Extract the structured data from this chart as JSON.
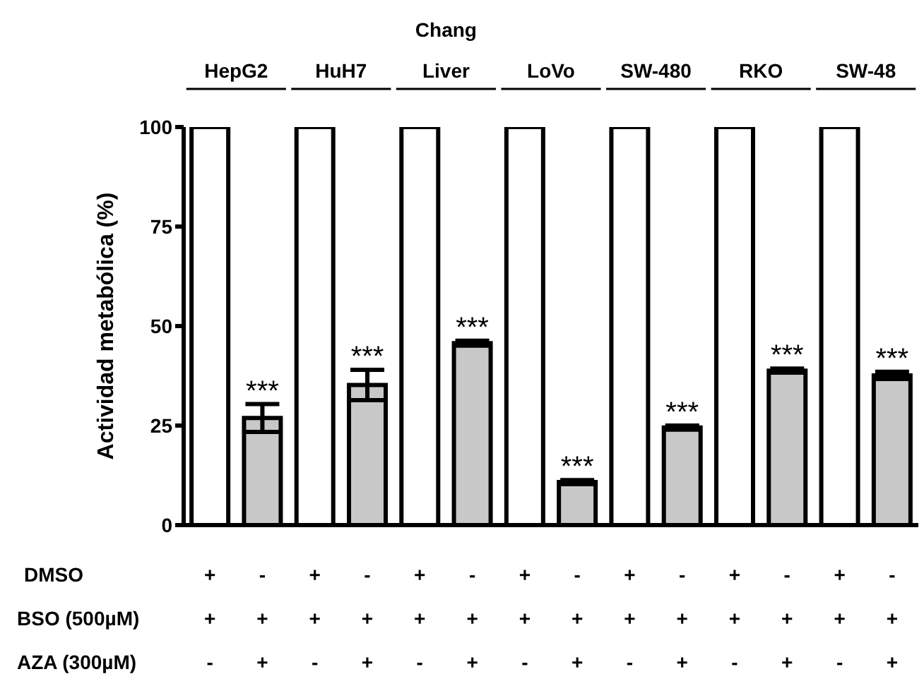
{
  "chart_data": {
    "type": "bar",
    "ylabel": "Actividad metabólica (%)",
    "categories": [
      "+\n+\n-",
      "-\n+\n+",
      "+\n+\n-",
      "-\n+\n+",
      "+\n+\n-",
      "-\n+\n+",
      "+\n+\n-",
      "-\n+\n+",
      "+\n+\n-",
      "-\n+\n+",
      "+\n+\n-",
      "-\n+\n+",
      "+\n+\n-",
      "-\n+\n+"
    ],
    "values": [
      100,
      26.9,
      100,
      35.2,
      100,
      45.7,
      100,
      10.8,
      100,
      24.5,
      100,
      38.8,
      100,
      37.6
    ],
    "colors": [
      "#ffffff",
      "#c8c8c8",
      "#ffffff",
      "#c8c8c8",
      "#ffffff",
      "#c8c8c8",
      "#ffffff",
      "#c8c8c8",
      "#ffffff",
      "#c8c8c8",
      "#ffffff",
      "#c8c8c8",
      "#ffffff",
      "#c8c8c8"
    ],
    "errors": [
      null,
      3.5,
      null,
      3.8,
      null,
      0.6,
      null,
      0.5,
      null,
      0.5,
      null,
      0.5,
      null,
      0.9
    ],
    "value_labels": [
      null,
      "***",
      null,
      "***",
      null,
      "***",
      null,
      "***",
      null,
      "***",
      null,
      "***",
      null,
      "***"
    ],
    "ylim": [
      0,
      100
    ],
    "yticks": [
      0,
      25,
      50,
      75,
      100
    ],
    "grid": false,
    "legend": false,
    "annotations": [
      "HepG2",
      "HuH7",
      "Chang Liver",
      "LoVo",
      "SW-480",
      "RKO",
      "SW-48",
      "DMSO",
      "BSO (500µM)",
      "AZA (300µM)"
    ]
  }
}
